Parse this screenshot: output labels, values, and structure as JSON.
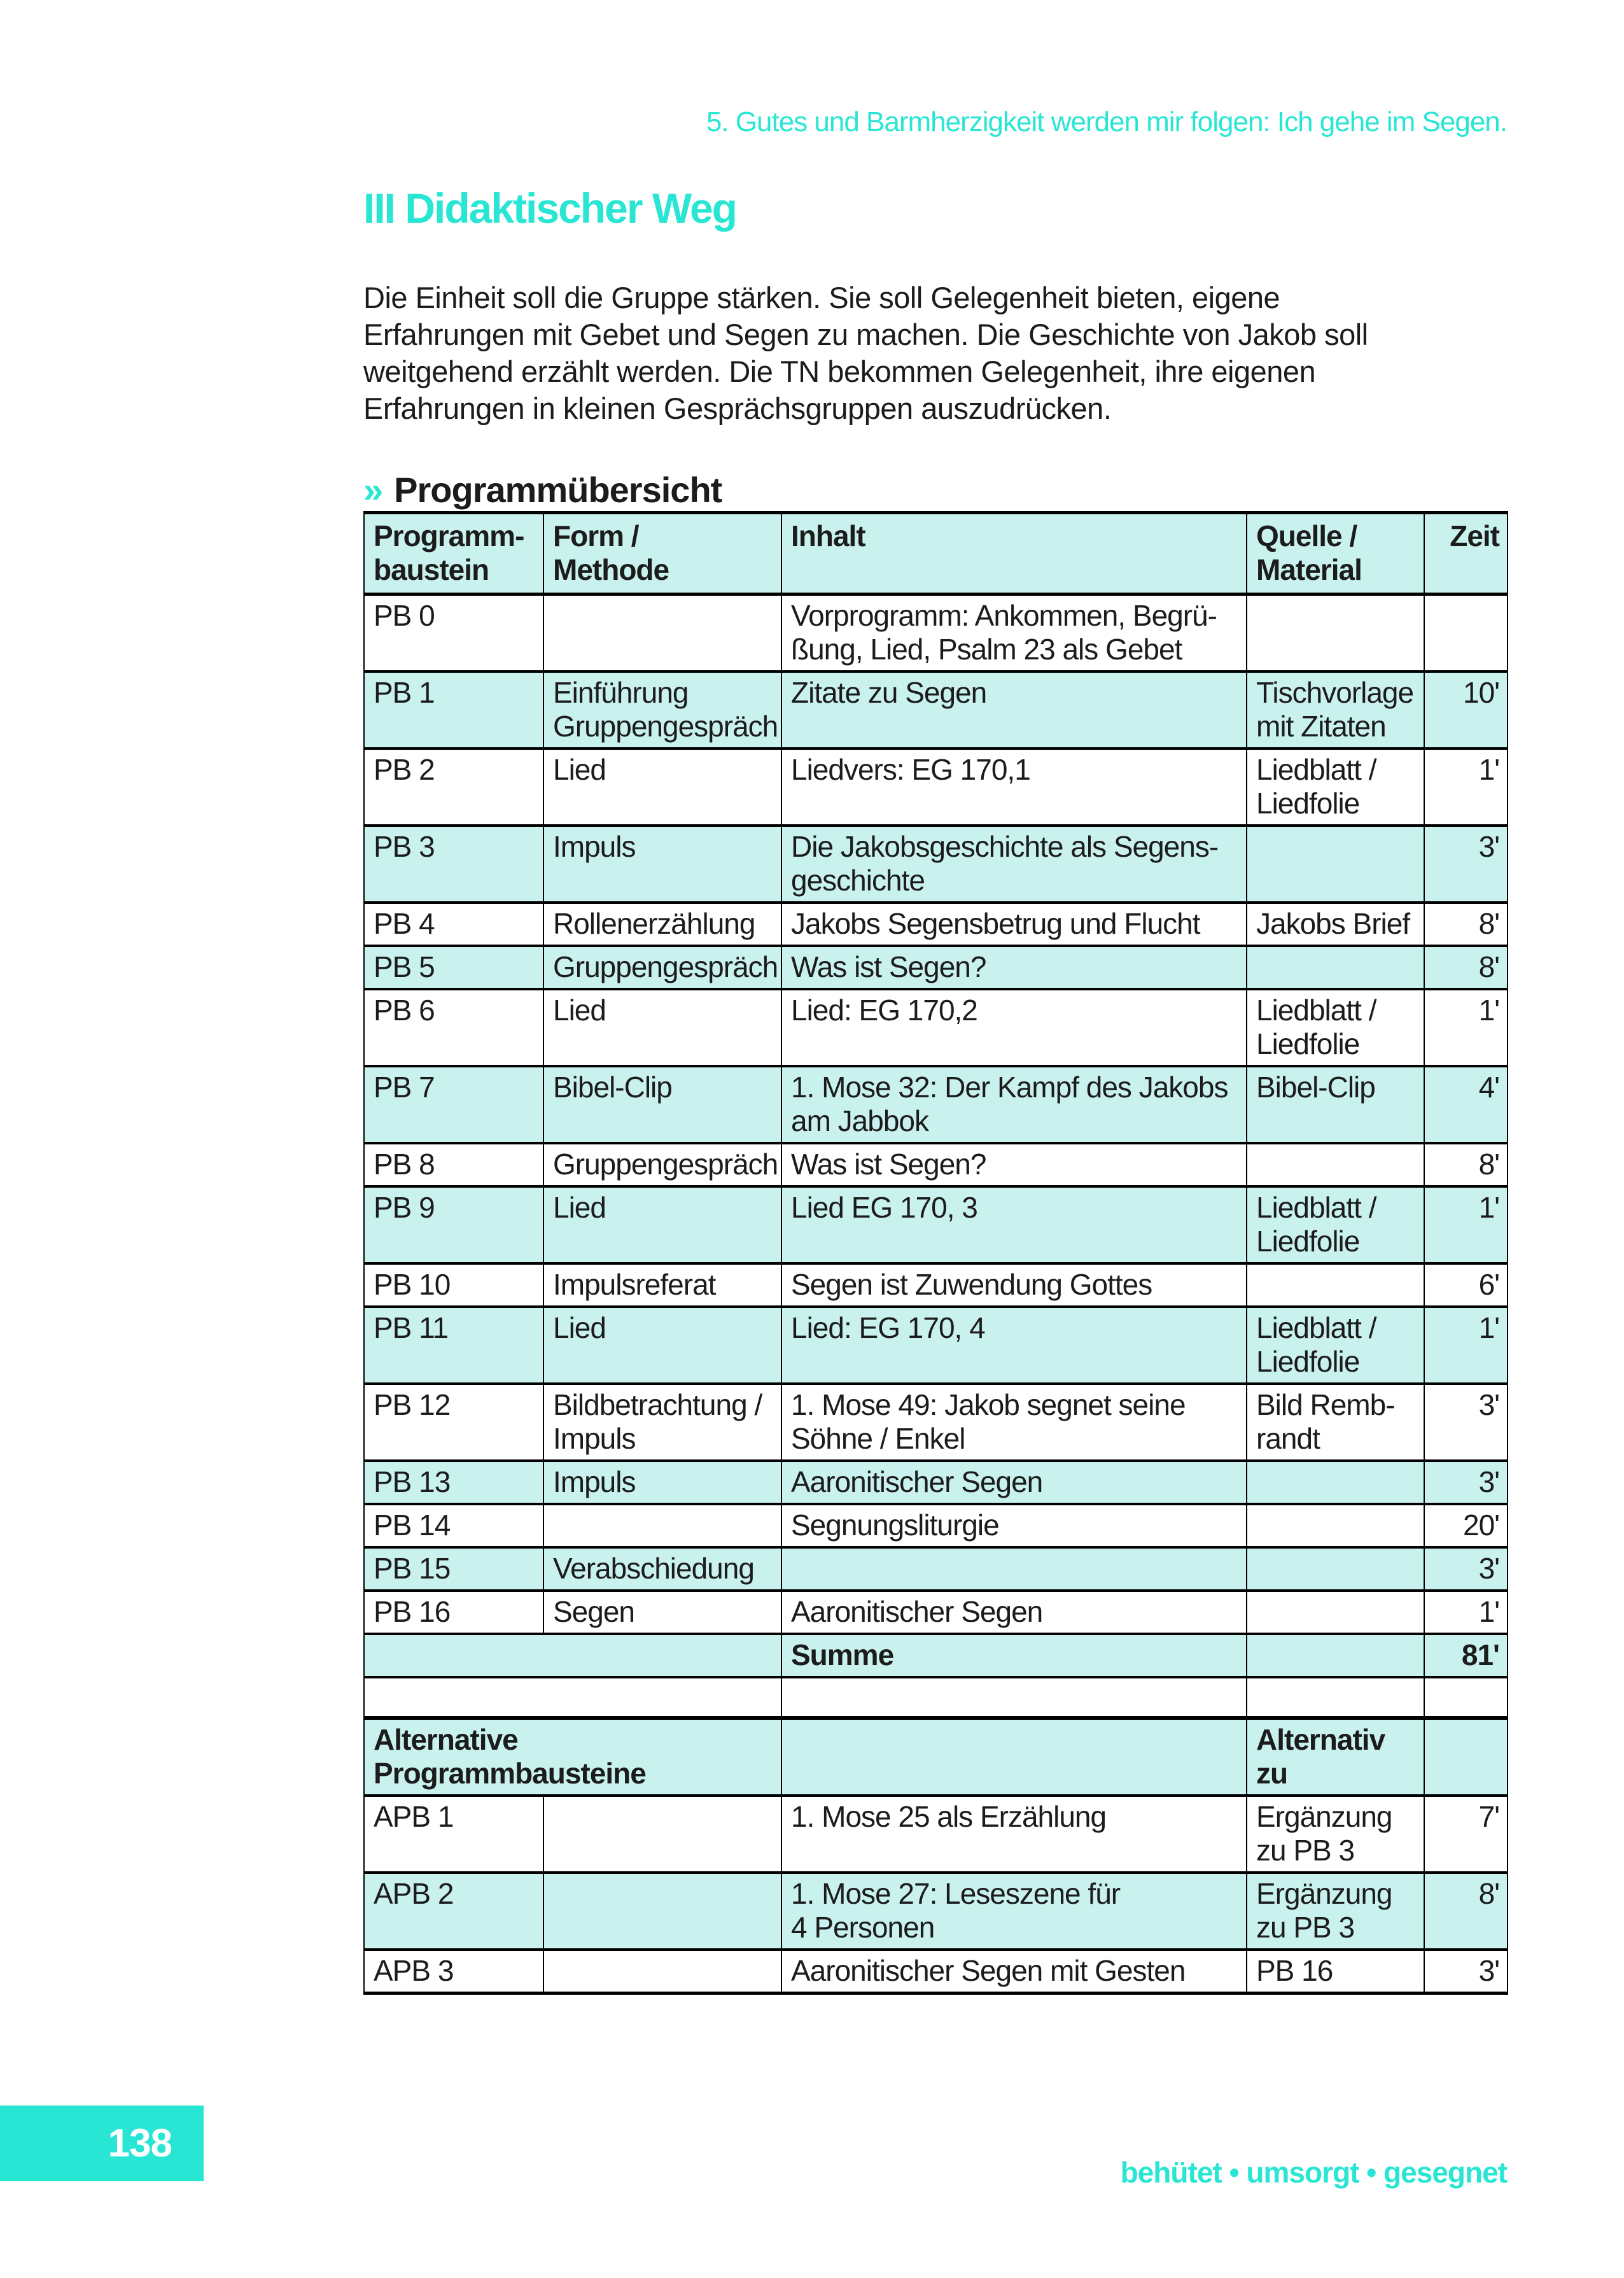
{
  "page": {
    "running_header": "5. Gutes und Barmherzigkeit werden mir folgen: Ich gehe im Segen.",
    "title": "III Didaktischer Weg",
    "intro": "Die Einheit soll die Gruppe stärken. Sie soll Gelegenheit bieten, eigene\nErfahrungen mit Gebet und Segen zu machen. Die Geschichte von Jakob soll\nweitgehend erzählt werden. Die TN bekommen Gelegenheit, ihre eigenen\nErfahrungen in kleinen Gesprächsgruppen auszudrücken.",
    "section_marker": "»",
    "section_title": "Programmübersicht"
  },
  "colors": {
    "accent": "#29e6d4",
    "row_shade": "#c9f2ef",
    "border": "#000000",
    "text": "#1c1c1c"
  },
  "table": {
    "columns": [
      "Programm-\nbaustein",
      "Form /\nMethode",
      "Inhalt",
      "Quelle /\nMaterial",
      "Zeit"
    ],
    "rows": [
      {
        "id": "PB 0",
        "form": "",
        "inhalt": "Vorprogramm: Ankommen, Begrü-\nßung, Lied, Psalm 23 als Gebet",
        "quelle": "",
        "zeit": "",
        "shaded": false
      },
      {
        "id": "PB 1",
        "form": "Einführung\nGruppengespräch",
        "inhalt": "Zitate zu Segen",
        "quelle": "Tischvorlage\nmit Zitaten",
        "zeit": "10'",
        "shaded": true
      },
      {
        "id": "PB 2",
        "form": "Lied",
        "inhalt": "Liedvers: EG 170,1",
        "quelle": "Liedblatt /\nLiedfolie",
        "zeit": "1'",
        "shaded": false
      },
      {
        "id": "PB 3",
        "form": "Impuls",
        "inhalt": "Die Jakobsgeschichte als Segens-\ngeschichte",
        "quelle": "",
        "zeit": "3'",
        "shaded": true
      },
      {
        "id": "PB 4",
        "form": "Rollenerzählung",
        "inhalt": "Jakobs Segensbetrug und Flucht",
        "quelle": "Jakobs Brief",
        "zeit": "8'",
        "shaded": false
      },
      {
        "id": "PB 5",
        "form": "Gruppengespräch",
        "inhalt": "Was ist Segen?",
        "quelle": "",
        "zeit": "8'",
        "shaded": true
      },
      {
        "id": "PB 6",
        "form": "Lied",
        "inhalt": "Lied: EG 170,2",
        "quelle": "Liedblatt /\nLiedfolie",
        "zeit": "1'",
        "shaded": false
      },
      {
        "id": "PB 7",
        "form": "Bibel-Clip",
        "inhalt": "1. Mose 32: Der Kampf des Jakobs\nam Jabbok",
        "quelle": "Bibel-Clip",
        "zeit": "4'",
        "shaded": true
      },
      {
        "id": "PB 8",
        "form": "Gruppengespräch",
        "inhalt": "Was ist Segen?",
        "quelle": "",
        "zeit": "8'",
        "shaded": false
      },
      {
        "id": "PB 9",
        "form": "Lied",
        "inhalt": "Lied EG 170, 3",
        "quelle": "Liedblatt /\nLiedfolie",
        "zeit": "1'",
        "shaded": true
      },
      {
        "id": "PB 10",
        "form": "Impulsreferat",
        "inhalt": "Segen ist Zuwendung Gottes",
        "quelle": "",
        "zeit": "6'",
        "shaded": false
      },
      {
        "id": "PB 11",
        "form": "Lied",
        "inhalt": "Lied: EG 170, 4",
        "quelle": "Liedblatt /\nLiedfolie",
        "zeit": "1'",
        "shaded": true
      },
      {
        "id": "PB 12",
        "form": "Bildbetrachtung /\nImpuls",
        "inhalt": "1. Mose 49: Jakob segnet seine\nSöhne / Enkel",
        "quelle": "Bild Remb-\nrandt",
        "zeit": "3'",
        "shaded": false
      },
      {
        "id": "PB 13",
        "form": "Impuls",
        "inhalt": "Aaronitischer Segen",
        "quelle": "",
        "zeit": "3'",
        "shaded": true
      },
      {
        "id": "PB 14",
        "form": "",
        "inhalt": "Segnungsliturgie",
        "quelle": "",
        "zeit": "20'",
        "shaded": false
      },
      {
        "id": "PB 15",
        "form": "Verabschiedung",
        "inhalt": "",
        "quelle": "",
        "zeit": "3'",
        "shaded": true
      },
      {
        "id": "PB 16",
        "form": "Segen",
        "inhalt": "Aaronitischer Segen",
        "quelle": "",
        "zeit": "1'",
        "shaded": false
      },
      {
        "id": "",
        "merged": true,
        "bold": true,
        "inhalt": "Summe",
        "quelle": "",
        "zeit": "81'",
        "shaded": true
      },
      {
        "id": "",
        "merged": true,
        "spacer": true,
        "inhalt": "",
        "quelle": "",
        "zeit": "",
        "shaded": false
      },
      {
        "id": "Alternative\nProgrammbausteine",
        "merged": true,
        "bold": true,
        "thick_top": true,
        "inhalt": "",
        "quelle": "Alternativ\nzu",
        "zeit": "",
        "shaded": true
      },
      {
        "id": "APB 1",
        "form": "",
        "inhalt": "1. Mose 25 als Erzählung",
        "quelle": "Ergänzung\nzu PB 3",
        "zeit": "7'",
        "shaded": false
      },
      {
        "id": "APB 2",
        "form": "",
        "inhalt": "1. Mose 27: Leseszene für\n4 Personen",
        "quelle": "Ergänzung\nzu PB 3",
        "zeit": "8'",
        "shaded": true
      },
      {
        "id": "APB 3",
        "form": "",
        "inhalt": "Aaronitischer Segen mit Gesten",
        "quelle": "PB 16",
        "zeit": "3'",
        "shaded": false
      }
    ]
  },
  "footer": {
    "page_number": "138",
    "motto": "behütet • umsorgt • gesegnet"
  }
}
